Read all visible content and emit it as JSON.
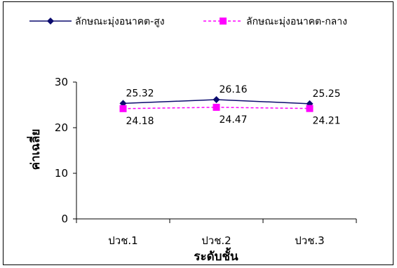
{
  "chart_data": {
    "type": "line",
    "title": "",
    "xlabel": "ระดับชั้น",
    "ylabel": "ค่าเฉลี่ย",
    "categories": [
      "ปวช.1",
      "ปวช.2",
      "ปวช.3"
    ],
    "ylim": [
      0,
      35
    ],
    "yticks": [
      0,
      10,
      20,
      30
    ],
    "grid": false,
    "legend_position": "top",
    "series": [
      {
        "name": "ลักษณะมุ่งอนาคต-สูง",
        "values": [
          25.32,
          26.16,
          25.25
        ],
        "labels": [
          "25.32",
          "26.16",
          "25.25"
        ],
        "color": "#0b0b6e",
        "line_style": "solid",
        "marker": "diamond"
      },
      {
        "name": "ลักษณะมุ่งอนาคต-กลาง",
        "values": [
          24.18,
          24.47,
          24.21
        ],
        "labels": [
          "24.18",
          "24.47",
          "24.21"
        ],
        "color": "#ff00ff",
        "line_style": "dashed",
        "marker": "square"
      }
    ]
  }
}
